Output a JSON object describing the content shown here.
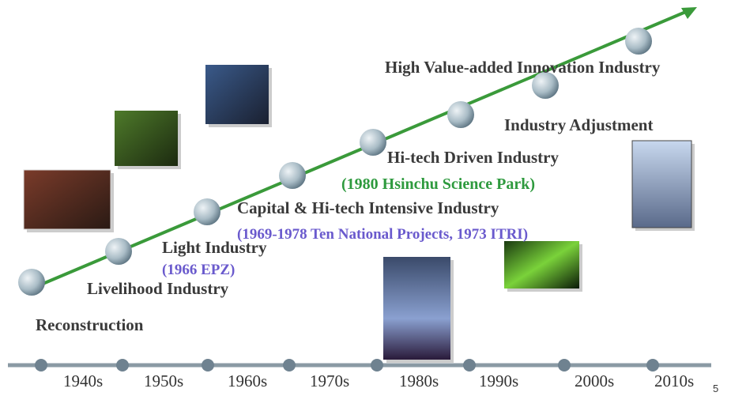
{
  "stages": [
    {
      "label": "Reconstruction"
    },
    {
      "label": "Livelihood Industry"
    },
    {
      "label": "Light Industry",
      "note": "(1966 EPZ)"
    },
    {
      "label": "Capital & Hi-tech Intensive Industry",
      "note": "(1969-1978 Ten National Projects, 1973 ITRI)"
    },
    {
      "label": "Hi-tech Driven Industry",
      "note": "(1980 Hsinchu Science Park)"
    },
    {
      "label": "Industry Adjustment"
    },
    {
      "label": "High Value-added Innovation Industry"
    }
  ],
  "decades": [
    "1940s",
    "1950s",
    "1960s",
    "1970s",
    "1980s",
    "1990s",
    "2000s",
    "2010s"
  ],
  "page_number": "5"
}
